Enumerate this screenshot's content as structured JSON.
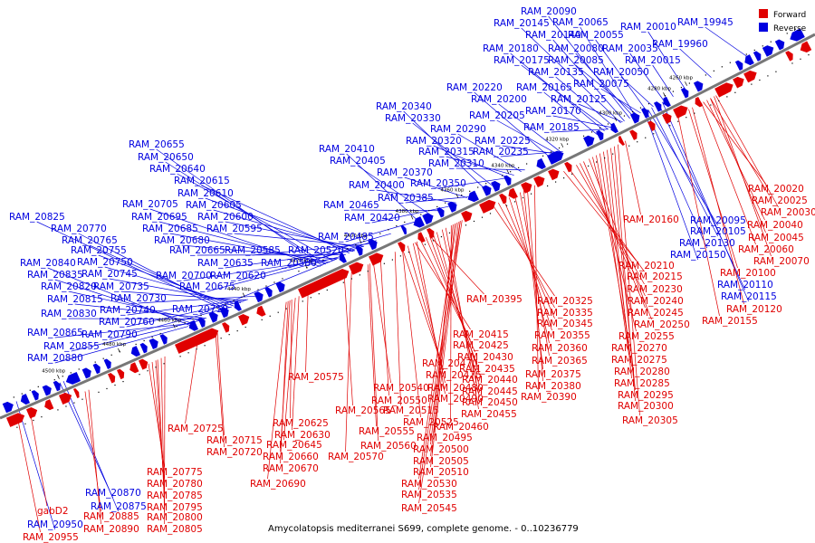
{
  "caption": "Amycolatopsis mediterranei S699, complete genome. - 0..10236779",
  "legend": {
    "forward": "Forward",
    "reverse": "Reverse"
  },
  "colors": {
    "forward": "#e00000",
    "reverse": "#0000e0",
    "backbone": "#808080"
  },
  "ticks": [
    "4260 kbp",
    "4280 kbp",
    "4300 kbp",
    "4320 kbp",
    "4340 kbp",
    "4360 kbp",
    "4380 kbp",
    "4400 kbp",
    "4420 kbp",
    "4440 kbp",
    "4460 kbp",
    "4480 kbp",
    "4500 kbp"
  ],
  "reverse_labels": [
    "RAM_20090",
    "RAM_20065",
    "RAM_20145",
    "RAM_20010",
    "RAM_19945",
    "RAM_20140",
    "RAM_20055",
    "RAM_19960",
    "RAM_20180",
    "RAM_20080",
    "RAM_20035",
    "RAM_20175",
    "RAM_20085",
    "RAM_20015",
    "RAM_20135",
    "RAM_20050",
    "RAM_20220",
    "RAM_20165",
    "RAM_20075",
    "RAM_20200",
    "RAM_20125",
    "RAM_20340",
    "RAM_20205",
    "RAM_20170",
    "RAM_20330",
    "RAM_20290",
    "RAM_20185",
    "RAM_20655",
    "RAM_20320",
    "RAM_20225",
    "RAM_20410",
    "RAM_20650",
    "RAM_20315",
    "RAM_20235",
    "RAM_20405",
    "RAM_20310",
    "RAM_20640",
    "RAM_20370",
    "RAM_20615",
    "RAM_20400",
    "RAM_20350",
    "RAM_20610",
    "RAM_20385",
    "RAM_20705",
    "RAM_20605",
    "RAM_20465",
    "RAM_20825",
    "RAM_20695",
    "RAM_20600",
    "RAM_20420",
    "RAM_20770",
    "RAM_20685",
    "RAM_20595",
    "RAM_20765",
    "RAM_20680",
    "RAM_20485",
    "RAM_20755",
    "RAM_20665",
    "RAM_20585",
    "RAM_20520",
    "RAM_20840",
    "RAM_20750",
    "RAM_20635",
    "RAM_20580",
    "RAM_20835",
    "RAM_20745",
    "RAM_20700",
    "RAM_20620",
    "RAM_20820",
    "RAM_20735",
    "RAM_20675",
    "RAM_20815",
    "RAM_20730",
    "RAM_20830",
    "RAM_20740",
    "RAM_20710",
    "RAM_20760",
    "RAM_20865",
    "RAM_20790",
    "RAM_20855",
    "RAM_20880",
    "RAM_20095",
    "RAM_20105",
    "RAM_20130",
    "RAM_20150",
    "RAM_20110",
    "RAM_20115",
    "RAM_20870",
    "RAM_20875",
    "RAM_20950"
  ],
  "forward_labels": [
    "RAM_20020",
    "RAM_20025",
    "RAM_20030",
    "RAM_20160",
    "RAM_20040",
    "RAM_20045",
    "RAM_20060",
    "RAM_20070",
    "RAM_20210",
    "RAM_20100",
    "RAM_20215",
    "RAM_20230",
    "RAM_20120",
    "RAM_20395",
    "RAM_20325",
    "RAM_20240",
    "RAM_20335",
    "RAM_20245",
    "RAM_20155",
    "RAM_20345",
    "RAM_20250",
    "RAM_20415",
    "RAM_20355",
    "RAM_20255",
    "RAM_20425",
    "RAM_20360",
    "RAM_20270",
    "RAM_20430",
    "RAM_20365",
    "RAM_20275",
    "RAM_20470",
    "RAM_20435",
    "RAM_20280",
    "RAM_20575",
    "RAM_20475",
    "RAM_20375",
    "RAM_20440",
    "RAM_20380",
    "RAM_20285",
    "RAM_20540",
    "RAM_20480",
    "RAM_20445",
    "RAM_20295",
    "RAM_20550",
    "RAM_20490",
    "RAM_20390",
    "RAM_20565",
    "RAM_20515",
    "RAM_20450",
    "RAM_20300",
    "RAM_20625",
    "RAM_20525",
    "RAM_20455",
    "RAM_20305",
    "RAM_20725",
    "RAM_20630",
    "RAM_20555",
    "RAM_20460",
    "RAM_20715",
    "RAM_20645",
    "RAM_20560",
    "RAM_20495",
    "RAM_20720",
    "RAM_20660",
    "RAM_20570",
    "RAM_20500",
    "RAM_20670",
    "RAM_20505",
    "RAM_20775",
    "RAM_20510",
    "RAM_20690",
    "RAM_20780",
    "RAM_20530",
    "RAM_20785",
    "RAM_20535",
    "RAM_20795",
    "RAM_20545",
    "gabD2",
    "RAM_20800",
    "RAM_20885",
    "RAM_20805",
    "RAM_20890",
    "RAM_20955"
  ]
}
